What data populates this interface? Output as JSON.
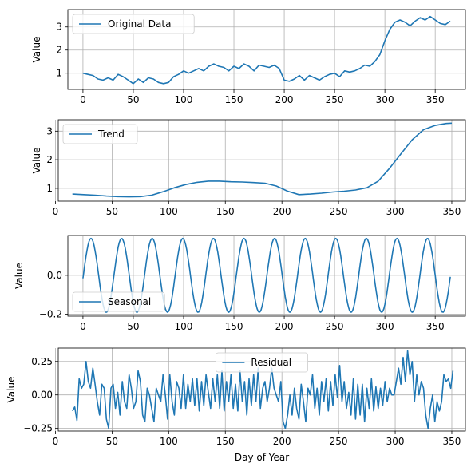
{
  "figure": {
    "xlabel": "Day of Year"
  },
  "chart_data": [
    {
      "type": "line",
      "legend": "Original Data",
      "legend_loc": "upper-left",
      "ylabel": "Value",
      "xlim": [
        -15,
        380
      ],
      "ylim": [
        0.3,
        3.75
      ],
      "xticks": [
        0,
        50,
        100,
        150,
        200,
        250,
        300,
        350
      ],
      "yticks": [
        1,
        2,
        3
      ],
      "color": "#1f77b4",
      "series": {
        "x": [
          0,
          5,
          10,
          15,
          20,
          25,
          30,
          35,
          40,
          45,
          50,
          55,
          60,
          65,
          70,
          75,
          80,
          85,
          90,
          95,
          100,
          105,
          110,
          115,
          120,
          125,
          130,
          135,
          140,
          145,
          150,
          155,
          160,
          165,
          170,
          175,
          180,
          185,
          190,
          195,
          200,
          205,
          210,
          215,
          220,
          225,
          230,
          235,
          240,
          245,
          250,
          255,
          260,
          265,
          270,
          275,
          280,
          285,
          290,
          295,
          300,
          305,
          310,
          315,
          320,
          325,
          330,
          335,
          340,
          345,
          350,
          355,
          360,
          365
        ],
        "y": [
          1.0,
          0.95,
          0.9,
          0.75,
          0.7,
          0.8,
          0.7,
          0.95,
          0.85,
          0.7,
          0.55,
          0.75,
          0.6,
          0.8,
          0.75,
          0.6,
          0.55,
          0.6,
          0.85,
          0.95,
          1.1,
          1.0,
          1.1,
          1.2,
          1.1,
          1.3,
          1.4,
          1.3,
          1.25,
          1.1,
          1.3,
          1.2,
          1.4,
          1.3,
          1.1,
          1.35,
          1.3,
          1.25,
          1.35,
          1.2,
          0.7,
          0.65,
          0.75,
          0.9,
          0.7,
          0.9,
          0.8,
          0.7,
          0.85,
          0.95,
          1.0,
          0.85,
          1.1,
          1.05,
          1.1,
          1.2,
          1.35,
          1.3,
          1.5,
          1.8,
          2.4,
          2.9,
          3.2,
          3.3,
          3.2,
          3.05,
          3.25,
          3.4,
          3.3,
          3.45,
          3.3,
          3.15,
          3.1,
          3.25
        ]
      }
    },
    {
      "type": "line",
      "legend": "Trend",
      "legend_loc": "upper-left",
      "ylabel": "Value",
      "xlim": [
        2.5,
        362
      ],
      "ylim": [
        0.55,
        3.4
      ],
      "xticks": [
        0,
        50,
        100,
        150,
        200,
        250,
        300,
        350
      ],
      "yticks": [
        1,
        2,
        3
      ],
      "color": "#1f77b4",
      "series": {
        "x": [
          15,
          25,
          35,
          45,
          55,
          65,
          75,
          85,
          95,
          105,
          115,
          125,
          135,
          145,
          155,
          165,
          175,
          185,
          195,
          205,
          215,
          225,
          235,
          245,
          255,
          265,
          275,
          285,
          295,
          305,
          315,
          325,
          335,
          345,
          350
        ],
        "y": [
          0.8,
          0.78,
          0.76,
          0.73,
          0.71,
          0.7,
          0.71,
          0.76,
          0.88,
          1.02,
          1.13,
          1.21,
          1.25,
          1.25,
          1.23,
          1.22,
          1.2,
          1.18,
          1.08,
          0.9,
          0.78,
          0.8,
          0.83,
          0.87,
          0.9,
          0.94,
          1.02,
          1.25,
          1.7,
          2.2,
          2.7,
          3.05,
          3.2,
          3.27,
          3.28
        ]
      }
    },
    {
      "type": "line",
      "legend": "Seasonal",
      "legend_loc": "lower-left",
      "ylabel": "Value",
      "xlim": [
        -15,
        380
      ],
      "ylim": [
        -0.21,
        0.205
      ],
      "xticks": [
        0,
        50,
        100,
        150,
        200,
        250,
        300,
        350
      ],
      "yticks": [
        -0.2,
        0.0
      ],
      "ytick_labels": [
        "−0.2",
        "0.0"
      ],
      "color": "#1f77b4",
      "series": {
        "period_days": 30.4,
        "amplitude": 0.19,
        "peak_at_day": 8,
        "x_range": [
          0,
          365
        ]
      }
    },
    {
      "type": "line",
      "legend": "Residual",
      "legend_loc": "upper-center",
      "ylabel": "Value",
      "xlim": [
        2.5,
        362
      ],
      "ylim": [
        -0.27,
        0.35
      ],
      "xticks": [
        0,
        50,
        100,
        150,
        200,
        250,
        300,
        350
      ],
      "yticks": [
        -0.25,
        0.0,
        0.25
      ],
      "ytick_labels": [
        "−0.25",
        "0.00",
        "0.25"
      ],
      "color": "#1f77b4",
      "series": {
        "x": [
          15,
          17,
          19,
          21,
          23,
          25,
          27,
          29,
          31,
          33,
          35,
          37,
          39,
          41,
          43,
          45,
          47,
          49,
          51,
          53,
          55,
          57,
          59,
          61,
          63,
          65,
          67,
          69,
          71,
          73,
          75,
          77,
          79,
          81,
          83,
          85,
          87,
          89,
          91,
          93,
          95,
          97,
          99,
          101,
          103,
          105,
          107,
          109,
          111,
          113,
          115,
          117,
          119,
          121,
          123,
          125,
          127,
          129,
          131,
          133,
          135,
          137,
          139,
          141,
          143,
          145,
          147,
          149,
          151,
          153,
          155,
          157,
          159,
          161,
          163,
          165,
          167,
          169,
          171,
          173,
          175,
          177,
          179,
          181,
          183,
          185,
          187,
          189,
          191,
          193,
          195,
          197,
          199,
          201,
          203,
          205,
          207,
          209,
          211,
          213,
          215,
          217,
          219,
          221,
          223,
          225,
          227,
          229,
          231,
          233,
          235,
          237,
          239,
          241,
          243,
          245,
          247,
          249,
          251,
          253,
          255,
          257,
          259,
          261,
          263,
          265,
          267,
          269,
          271,
          273,
          275,
          277,
          279,
          281,
          283,
          285,
          287,
          289,
          291,
          293,
          295,
          297,
          299,
          301,
          303,
          305,
          307,
          309,
          311,
          313,
          315,
          317,
          319,
          321,
          323,
          325,
          327,
          329,
          331,
          333,
          335,
          337,
          339,
          341,
          343,
          345,
          347,
          349,
          351
        ],
        "y": [
          -0.12,
          -0.09,
          -0.19,
          0.12,
          0.05,
          0.08,
          0.25,
          0.1,
          0.05,
          0.2,
          0.08,
          -0.05,
          -0.15,
          0.08,
          0.05,
          -0.18,
          -0.25,
          0.05,
          0.08,
          -0.1,
          0.02,
          -0.15,
          0.1,
          -0.05,
          -0.1,
          0.15,
          0.05,
          -0.1,
          -0.05,
          0.18,
          0.1,
          -0.15,
          -0.2,
          0.05,
          0.0,
          -0.1,
          -0.2,
          0.05,
          0.0,
          -0.05,
          0.15,
          0.0,
          -0.18,
          0.15,
          -0.05,
          -0.15,
          0.1,
          0.05,
          -0.1,
          0.15,
          -0.1,
          0.08,
          -0.05,
          0.12,
          -0.08,
          0.12,
          -0.12,
          0.1,
          -0.08,
          0.15,
          0.02,
          -0.1,
          0.12,
          -0.05,
          0.15,
          -0.1,
          0.18,
          -0.12,
          0.1,
          -0.05,
          0.15,
          -0.1,
          0.08,
          -0.12,
          0.18,
          -0.05,
          0.1,
          -0.15,
          0.12,
          -0.08,
          0.15,
          -0.05,
          0.2,
          -0.1,
          0.05,
          0.1,
          -0.05,
          0.05,
          0.2,
          0.05,
          0.0,
          -0.05,
          0.1,
          -0.2,
          -0.25,
          -0.15,
          0.0,
          -0.15,
          0.05,
          -0.1,
          -0.18,
          0.08,
          -0.05,
          -0.2,
          0.05,
          0.0,
          0.15,
          -0.1,
          0.05,
          -0.15,
          0.1,
          -0.05,
          0.12,
          -0.12,
          0.1,
          -0.08,
          0.15,
          -0.02,
          0.22,
          -0.05,
          0.1,
          -0.1,
          0.02,
          -0.15,
          0.12,
          -0.18,
          0.08,
          -0.15,
          0.08,
          -0.2,
          0.05,
          -0.1,
          0.12,
          -0.12,
          0.06,
          -0.1,
          0.05,
          -0.08,
          0.1,
          -0.05,
          0.05,
          0.0,
          0.0,
          0.1,
          0.2,
          0.08,
          0.28,
          0.1,
          0.33,
          0.15,
          0.25,
          -0.05,
          0.15,
          0.0,
          0.1,
          0.05,
          -0.15,
          -0.25,
          -0.1,
          0.0,
          -0.2,
          -0.05,
          -0.12,
          -0.05,
          0.15,
          0.1,
          0.12,
          0.05,
          0.18
        ]
      }
    }
  ]
}
